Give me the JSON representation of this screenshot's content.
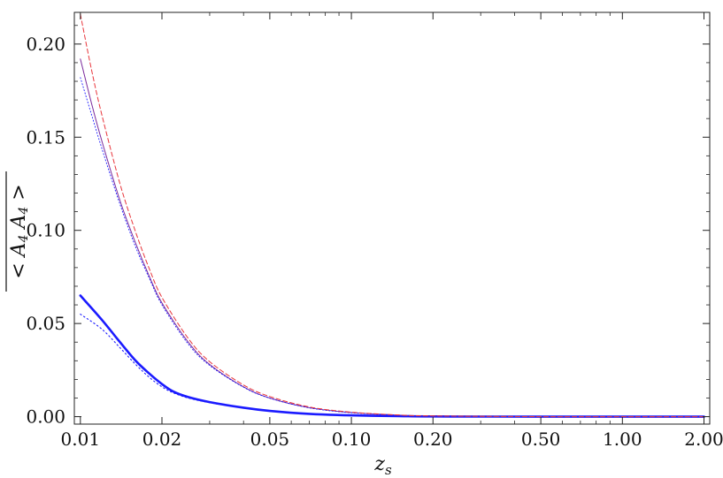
{
  "chart_data": {
    "type": "line",
    "title": "",
    "xlabel": "z_s",
    "xlabel_main": "z",
    "xlabel_sub": "s",
    "ylabel": "< A_4 A_4 >",
    "x_scale": "log",
    "xlim": [
      0.0095,
      2.1
    ],
    "ylim": [
      -0.004,
      0.217
    ],
    "x_ticks": [
      {
        "value": 0.01,
        "label": "0.01"
      },
      {
        "value": 0.02,
        "label": "0.02"
      },
      {
        "value": 0.05,
        "label": "0.05"
      },
      {
        "value": 0.1,
        "label": "0.10"
      },
      {
        "value": 0.2,
        "label": "0.20"
      },
      {
        "value": 0.5,
        "label": "0.50"
      },
      {
        "value": 1.0,
        "label": "1.00"
      },
      {
        "value": 2.0,
        "label": "2.00"
      }
    ],
    "y_ticks": [
      {
        "value": 0.0,
        "label": "0.00"
      },
      {
        "value": 0.05,
        "label": "0.05"
      },
      {
        "value": 0.1,
        "label": "0.10"
      },
      {
        "value": 0.15,
        "label": "0.15"
      },
      {
        "value": 0.2,
        "label": "0.20"
      }
    ],
    "grid": false,
    "frame": true,
    "series": [
      {
        "color": "#1a1aff",
        "style": "solid-thick",
        "x": [
          0.01,
          0.012,
          0.014,
          0.016,
          0.018,
          0.02,
          0.022,
          0.025,
          0.03,
          0.04,
          0.05,
          0.07,
          0.1,
          0.15,
          0.2,
          0.5,
          1.0,
          2.0
        ],
        "y": [
          0.065,
          0.052,
          0.04,
          0.03,
          0.023,
          0.0175,
          0.0135,
          0.0105,
          0.0078,
          0.0048,
          0.0031,
          0.0015,
          0.0007,
          0.0003,
          0.0001,
          0.0,
          0.0,
          0.0
        ]
      },
      {
        "color": "#1a1aff",
        "style": "dotted",
        "x": [
          0.01,
          0.012,
          0.014,
          0.016,
          0.018,
          0.02,
          0.022,
          0.025,
          0.03,
          0.04,
          0.05,
          0.07,
          0.1,
          0.15,
          0.2,
          0.5,
          1.0,
          2.0
        ],
        "y": [
          0.055,
          0.047,
          0.037,
          0.028,
          0.021,
          0.016,
          0.0128,
          0.01,
          0.0075,
          0.0047,
          0.003,
          0.0015,
          0.0007,
          0.0003,
          0.0001,
          0.0,
          0.0,
          0.0
        ]
      },
      {
        "color": "#7a2a9c",
        "style": "solid-thin",
        "x": [
          0.01,
          0.011,
          0.012,
          0.014,
          0.016,
          0.018,
          0.02,
          0.025,
          0.03,
          0.04,
          0.05,
          0.07,
          0.1,
          0.15,
          0.2,
          0.5,
          1.0,
          2.0
        ],
        "y": [
          0.192,
          0.168,
          0.148,
          0.116,
          0.093,
          0.075,
          0.061,
          0.04,
          0.028,
          0.016,
          0.01,
          0.0048,
          0.0022,
          0.0008,
          0.0003,
          0.0,
          0.0,
          0.0
        ]
      },
      {
        "color": "#1a1aff",
        "style": "dotted-thin",
        "x": [
          0.01,
          0.011,
          0.012,
          0.014,
          0.016,
          0.018,
          0.02,
          0.025,
          0.03,
          0.04,
          0.05,
          0.07,
          0.1,
          0.15,
          0.2,
          0.5,
          1.0,
          2.0
        ],
        "y": [
          0.182,
          0.162,
          0.144,
          0.114,
          0.091,
          0.074,
          0.06,
          0.039,
          0.0275,
          0.0158,
          0.0099,
          0.0047,
          0.0021,
          0.0008,
          0.0003,
          0.0,
          0.0,
          0.0
        ]
      },
      {
        "color": "#e8343a",
        "style": "dashed",
        "x": [
          0.01,
          0.011,
          0.012,
          0.014,
          0.016,
          0.018,
          0.02,
          0.025,
          0.03,
          0.04,
          0.05,
          0.07,
          0.1,
          0.15,
          0.2,
          0.5,
          1.0,
          2.0
        ],
        "y": [
          0.216,
          0.186,
          0.162,
          0.125,
          0.099,
          0.079,
          0.064,
          0.042,
          0.0295,
          0.017,
          0.0108,
          0.0052,
          0.0024,
          0.0009,
          0.0004,
          0.0,
          0.0,
          0.0
        ]
      }
    ]
  }
}
